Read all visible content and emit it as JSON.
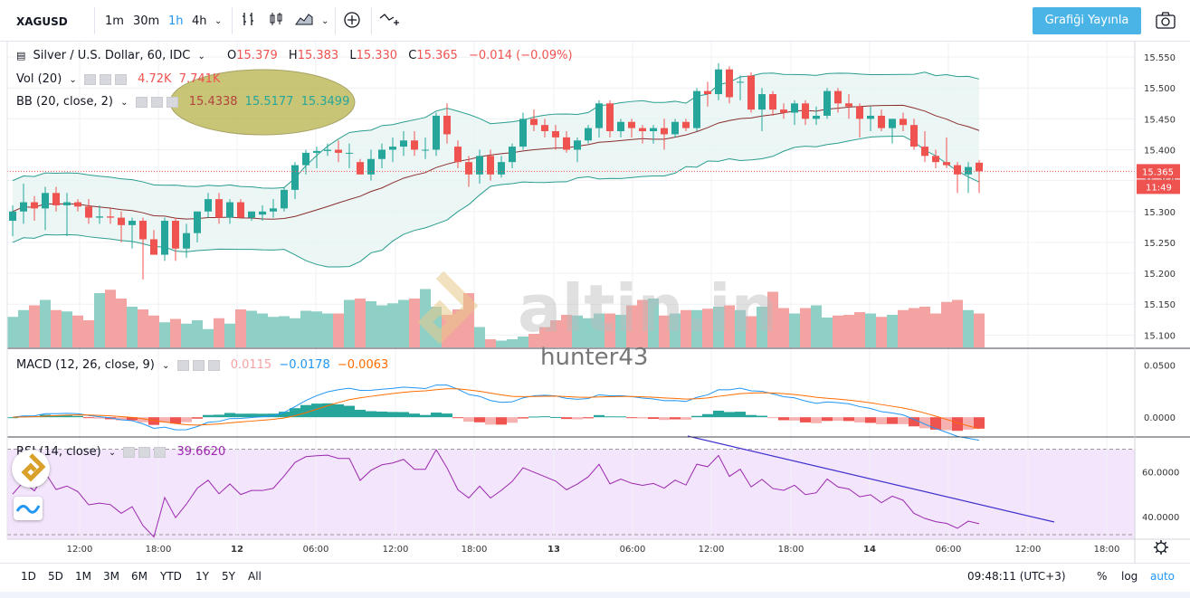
{
  "toolbar": {
    "symbol": "XAGUSD",
    "intervals": [
      "1m",
      "30m",
      "1h",
      "4h"
    ],
    "active_interval": "1h",
    "publish_label": "Grafiği Yayınla"
  },
  "legend": {
    "title": "Silver / U.S. Dollar, 60, IDC",
    "open_label": "O",
    "open": "15.379",
    "high_label": "H",
    "high": "15.383",
    "low_label": "L",
    "low": "15.330",
    "close_label": "C",
    "close": "15.365",
    "change": "−0.014 (−0.09%)",
    "vol_name": "Vol (20)",
    "vol_v1": "4.72K",
    "vol_v2": "7.741K",
    "bb_name": "BB (20, close, 2)",
    "bb_v1": "15.4338",
    "bb_v2": "15.5177",
    "bb_v3": "15.3499",
    "macd_name": "MACD (12, 26, close, 9)",
    "macd_v1": "0.0115",
    "macd_v2": "−0.0178",
    "macd_v3": "−0.0063",
    "rsi_name": "RSI (14, close)",
    "rsi_v": "39.6620"
  },
  "watermark": {
    "brand": "altin.in",
    "user": "hunter43"
  },
  "price_axis": {
    "ticks": [
      "15.550",
      "15.500",
      "15.450",
      "15.400",
      "15.350",
      "15.300",
      "15.250",
      "15.200",
      "15.150",
      "15.100"
    ],
    "last_price": "15.365",
    "countdown": "11:49"
  },
  "macd_axis": {
    "ticks": [
      "0.0500",
      "0.0000"
    ]
  },
  "rsi_axis": {
    "ticks": [
      "60.0000",
      "40.0000"
    ]
  },
  "time_axis": {
    "ticks": [
      "12:00",
      "18:00",
      "12",
      "06:00",
      "12:00",
      "18:00",
      "13",
      "06:00",
      "12:00",
      "18:00",
      "14",
      "06:00",
      "12:00",
      "18:00"
    ]
  },
  "bottom": {
    "ranges": [
      "1D",
      "5D",
      "1M",
      "3M",
      "6M",
      "YTD",
      "1Y",
      "5Y",
      "All"
    ],
    "clock": "09:48:11 (UTC+3)",
    "percent": "%",
    "log": "log",
    "auto": "auto"
  },
  "colors": {
    "up": "#26a69a",
    "down": "#ef5350",
    "bb_fill": "#e6f4f2",
    "bb_band": "#2a9d8f",
    "bb_mid": "#8b2e2e",
    "macd_line": "#2196f3",
    "signal_line": "#ff6d00",
    "rsi_line": "#9c27b0",
    "rsi_bg": "#f3e5fb",
    "trendline": "#3f2fcf",
    "highlight": "#b8b24a"
  },
  "chart_data": {
    "type": "candlestick",
    "candles": [
      {
        "o": 15.285,
        "h": 15.31,
        "l": 15.26,
        "c": 15.3
      },
      {
        "o": 15.3,
        "h": 15.345,
        "l": 15.28,
        "c": 15.315
      },
      {
        "o": 15.315,
        "h": 15.325,
        "l": 15.285,
        "c": 15.305
      },
      {
        "o": 15.305,
        "h": 15.34,
        "l": 15.27,
        "c": 15.33
      },
      {
        "o": 15.33,
        "h": 15.34,
        "l": 15.3,
        "c": 15.31
      },
      {
        "o": 15.31,
        "h": 15.33,
        "l": 15.26,
        "c": 15.315
      },
      {
        "o": 15.315,
        "h": 15.32,
        "l": 15.3,
        "c": 15.308
      },
      {
        "o": 15.308,
        "h": 15.32,
        "l": 15.28,
        "c": 15.29
      },
      {
        "o": 15.29,
        "h": 15.31,
        "l": 15.28,
        "c": 15.292
      },
      {
        "o": 15.292,
        "h": 15.305,
        "l": 15.28,
        "c": 15.29
      },
      {
        "o": 15.29,
        "h": 15.3,
        "l": 15.25,
        "c": 15.278
      },
      {
        "o": 15.278,
        "h": 15.29,
        "l": 15.24,
        "c": 15.285
      },
      {
        "o": 15.285,
        "h": 15.29,
        "l": 15.19,
        "c": 15.255
      },
      {
        "o": 15.255,
        "h": 15.27,
        "l": 15.23,
        "c": 15.23
      },
      {
        "o": 15.23,
        "h": 15.29,
        "l": 15.22,
        "c": 15.285
      },
      {
        "o": 15.285,
        "h": 15.29,
        "l": 15.22,
        "c": 15.24
      },
      {
        "o": 15.24,
        "h": 15.28,
        "l": 15.225,
        "c": 15.265
      },
      {
        "o": 15.265,
        "h": 15.3,
        "l": 15.25,
        "c": 15.3
      },
      {
        "o": 15.3,
        "h": 15.33,
        "l": 15.29,
        "c": 15.32
      },
      {
        "o": 15.32,
        "h": 15.33,
        "l": 15.28,
        "c": 15.29
      },
      {
        "o": 15.29,
        "h": 15.32,
        "l": 15.28,
        "c": 15.315
      },
      {
        "o": 15.315,
        "h": 15.32,
        "l": 15.29,
        "c": 15.29
      },
      {
        "o": 15.29,
        "h": 15.3,
        "l": 15.285,
        "c": 15.3
      },
      {
        "o": 15.295,
        "h": 15.31,
        "l": 15.285,
        "c": 15.3
      },
      {
        "o": 15.3,
        "h": 15.32,
        "l": 15.29,
        "c": 15.305
      },
      {
        "o": 15.305,
        "h": 15.34,
        "l": 15.3,
        "c": 15.335
      },
      {
        "o": 15.335,
        "h": 15.38,
        "l": 15.32,
        "c": 15.375
      },
      {
        "o": 15.375,
        "h": 15.4,
        "l": 15.36,
        "c": 15.395
      },
      {
        "o": 15.395,
        "h": 15.405,
        "l": 15.37,
        "c": 15.398
      },
      {
        "o": 15.398,
        "h": 15.41,
        "l": 15.39,
        "c": 15.4
      },
      {
        "o": 15.4,
        "h": 15.415,
        "l": 15.38,
        "c": 15.395
      },
      {
        "o": 15.395,
        "h": 15.41,
        "l": 15.37,
        "c": 15.395
      },
      {
        "o": 15.38,
        "h": 15.385,
        "l": 15.36,
        "c": 15.36
      },
      {
        "o": 15.36,
        "h": 15.4,
        "l": 15.35,
        "c": 15.385
      },
      {
        "o": 15.385,
        "h": 15.41,
        "l": 15.37,
        "c": 15.4
      },
      {
        "o": 15.4,
        "h": 15.42,
        "l": 15.38,
        "c": 15.405
      },
      {
        "o": 15.405,
        "h": 15.43,
        "l": 15.39,
        "c": 15.415
      },
      {
        "o": 15.415,
        "h": 15.43,
        "l": 15.39,
        "c": 15.4
      },
      {
        "o": 15.4,
        "h": 15.42,
        "l": 15.385,
        "c": 15.4
      },
      {
        "o": 15.4,
        "h": 15.46,
        "l": 15.39,
        "c": 15.455
      },
      {
        "o": 15.455,
        "h": 15.475,
        "l": 15.41,
        "c": 15.425
      },
      {
        "o": 15.405,
        "h": 15.415,
        "l": 15.37,
        "c": 15.38
      },
      {
        "o": 15.38,
        "h": 15.39,
        "l": 15.34,
        "c": 15.36
      },
      {
        "o": 15.36,
        "h": 15.4,
        "l": 15.345,
        "c": 15.39
      },
      {
        "o": 15.39,
        "h": 15.4,
        "l": 15.35,
        "c": 15.36
      },
      {
        "o": 15.36,
        "h": 15.39,
        "l": 15.355,
        "c": 15.38
      },
      {
        "o": 15.38,
        "h": 15.41,
        "l": 15.37,
        "c": 15.405
      },
      {
        "o": 15.405,
        "h": 15.46,
        "l": 15.4,
        "c": 15.45
      },
      {
        "o": 15.45,
        "h": 15.465,
        "l": 15.43,
        "c": 15.44
      },
      {
        "o": 15.44,
        "h": 15.45,
        "l": 15.42,
        "c": 15.43
      },
      {
        "o": 15.43,
        "h": 15.44,
        "l": 15.4,
        "c": 15.42
      },
      {
        "o": 15.42,
        "h": 15.43,
        "l": 15.395,
        "c": 15.4
      },
      {
        "o": 15.4,
        "h": 15.42,
        "l": 15.38,
        "c": 15.415
      },
      {
        "o": 15.415,
        "h": 15.44,
        "l": 15.41,
        "c": 15.435
      },
      {
        "o": 15.435,
        "h": 15.48,
        "l": 15.42,
        "c": 15.475
      },
      {
        "o": 15.475,
        "h": 15.48,
        "l": 15.42,
        "c": 15.43
      },
      {
        "o": 15.43,
        "h": 15.45,
        "l": 15.42,
        "c": 15.445
      },
      {
        "o": 15.445,
        "h": 15.45,
        "l": 15.42,
        "c": 15.435
      },
      {
        "o": 15.435,
        "h": 15.44,
        "l": 15.41,
        "c": 15.43
      },
      {
        "o": 15.43,
        "h": 15.44,
        "l": 15.41,
        "c": 15.435
      },
      {
        "o": 15.435,
        "h": 15.45,
        "l": 15.4,
        "c": 15.425
      },
      {
        "o": 15.425,
        "h": 15.45,
        "l": 15.42,
        "c": 15.445
      },
      {
        "o": 15.445,
        "h": 15.45,
        "l": 15.43,
        "c": 15.435
      },
      {
        "o": 15.435,
        "h": 15.5,
        "l": 15.43,
        "c": 15.495
      },
      {
        "o": 15.495,
        "h": 15.51,
        "l": 15.47,
        "c": 15.49
      },
      {
        "o": 15.49,
        "h": 15.54,
        "l": 15.48,
        "c": 15.53
      },
      {
        "o": 15.53,
        "h": 15.535,
        "l": 15.475,
        "c": 15.485
      },
      {
        "o": 15.51,
        "h": 15.52,
        "l": 15.48,
        "c": 15.51
      },
      {
        "o": 15.52,
        "h": 15.525,
        "l": 15.46,
        "c": 15.465
      },
      {
        "o": 15.465,
        "h": 15.5,
        "l": 15.43,
        "c": 15.49
      },
      {
        "o": 15.49,
        "h": 15.495,
        "l": 15.455,
        "c": 15.465
      },
      {
        "o": 15.465,
        "h": 15.475,
        "l": 15.45,
        "c": 15.46
      },
      {
        "o": 15.46,
        "h": 15.48,
        "l": 15.44,
        "c": 15.475
      },
      {
        "o": 15.475,
        "h": 15.48,
        "l": 15.44,
        "c": 15.45
      },
      {
        "o": 15.45,
        "h": 15.47,
        "l": 15.44,
        "c": 15.455
      },
      {
        "o": 15.455,
        "h": 15.5,
        "l": 15.45,
        "c": 15.495
      },
      {
        "o": 15.495,
        "h": 15.5,
        "l": 15.46,
        "c": 15.475
      },
      {
        "o": 15.475,
        "h": 15.49,
        "l": 15.45,
        "c": 15.47
      },
      {
        "o": 15.47,
        "h": 15.475,
        "l": 15.42,
        "c": 15.45
      },
      {
        "o": 15.45,
        "h": 15.47,
        "l": 15.43,
        "c": 15.455
      },
      {
        "o": 15.455,
        "h": 15.465,
        "l": 15.43,
        "c": 15.435
      },
      {
        "o": 15.435,
        "h": 15.45,
        "l": 15.41,
        "c": 15.45
      },
      {
        "o": 15.45,
        "h": 15.46,
        "l": 15.43,
        "c": 15.44
      },
      {
        "o": 15.44,
        "h": 15.45,
        "l": 15.4,
        "c": 15.405
      },
      {
        "o": 15.405,
        "h": 15.43,
        "l": 15.38,
        "c": 15.39
      },
      {
        "o": 15.39,
        "h": 15.4,
        "l": 15.37,
        "c": 15.38
      },
      {
        "o": 15.38,
        "h": 15.42,
        "l": 15.37,
        "c": 15.375
      },
      {
        "o": 15.375,
        "h": 15.38,
        "l": 15.33,
        "c": 15.36
      },
      {
        "o": 15.36,
        "h": 15.38,
        "l": 15.33,
        "c": 15.372
      },
      {
        "o": 15.379,
        "h": 15.383,
        "l": 15.33,
        "c": 15.365
      }
    ],
    "volume": [
      0.45,
      0.55,
      0.62,
      0.7,
      0.55,
      0.53,
      0.47,
      0.4,
      0.8,
      0.85,
      0.72,
      0.6,
      0.56,
      0.47,
      0.37,
      0.42,
      0.35,
      0.4,
      0.27,
      0.43,
      0.35,
      0.56,
      0.54,
      0.5,
      0.45,
      0.46,
      0.43,
      0.54,
      0.53,
      0.5,
      0.5,
      0.7,
      0.72,
      0.68,
      0.62,
      0.65,
      0.7,
      0.72,
      0.86,
      0.6,
      0.48,
      0.56,
      0.8,
      0.3,
      0.12,
      0.1,
      0.12,
      0.16,
      0.2,
      0.3,
      0.4,
      0.48,
      0.47,
      0.43,
      0.5,
      0.5,
      0.48,
      0.62,
      0.7,
      0.72,
      0.47,
      0.5,
      0.55,
      0.55,
      0.57,
      0.6,
      0.62,
      0.55,
      0.46,
      0.6,
      0.82,
      0.58,
      0.5,
      0.58,
      0.62,
      0.44,
      0.47,
      0.48,
      0.52,
      0.5,
      0.45,
      0.48,
      0.55,
      0.58,
      0.6,
      0.5,
      0.67,
      0.7,
      0.55,
      0.5
    ],
    "macd": [
      0.0115,
      -0.0178,
      -0.0063
    ],
    "rsi": 39.662,
    "price_range": [
      15.08,
      15.575
    ],
    "macd_range": [
      -0.018,
      0.065
    ],
    "rsi_range": [
      30,
      75
    ]
  }
}
